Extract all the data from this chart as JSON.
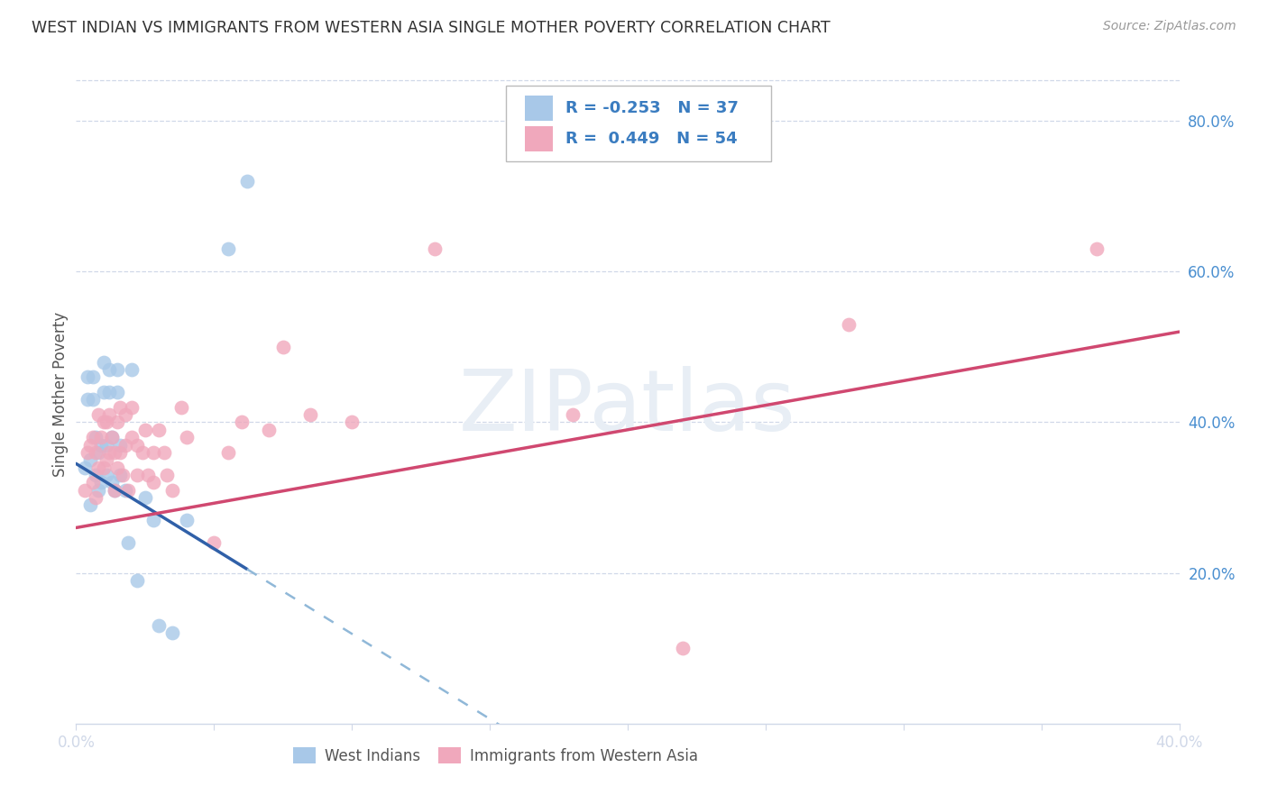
{
  "title": "WEST INDIAN VS IMMIGRANTS FROM WESTERN ASIA SINGLE MOTHER POVERTY CORRELATION CHART",
  "source": "Source: ZipAtlas.com",
  "ylabel": "Single Mother Poverty",
  "right_ytick_labels": [
    "80.0%",
    "60.0%",
    "40.0%",
    "20.0%"
  ],
  "right_ytick_vals": [
    0.8,
    0.6,
    0.4,
    0.2
  ],
  "xlim": [
    0.0,
    0.4
  ],
  "ylim": [
    0.0,
    0.875
  ],
  "legend_label1": "West Indians",
  "legend_label2": "Immigrants from Western Asia",
  "r1": -0.253,
  "n1": 37,
  "r2": 0.449,
  "n2": 54,
  "color_blue_scatter": "#a8c8e8",
  "color_pink_scatter": "#f0a8bc",
  "color_blue_line": "#3060a8",
  "color_pink_line": "#d04870",
  "color_blue_dash": "#90b8d8",
  "watermark_text": "ZIPatlas",
  "grid_color": "#d0d8e8",
  "wi_x": [
    0.003,
    0.004,
    0.004,
    0.005,
    0.005,
    0.006,
    0.006,
    0.007,
    0.007,
    0.008,
    0.008,
    0.009,
    0.009,
    0.01,
    0.01,
    0.011,
    0.011,
    0.012,
    0.012,
    0.013,
    0.013,
    0.014,
    0.015,
    0.015,
    0.016,
    0.016,
    0.018,
    0.019,
    0.02,
    0.022,
    0.025,
    0.028,
    0.03,
    0.035,
    0.04,
    0.055,
    0.062
  ],
  "wi_y": [
    0.34,
    0.46,
    0.43,
    0.35,
    0.29,
    0.46,
    0.43,
    0.38,
    0.33,
    0.36,
    0.31,
    0.37,
    0.32,
    0.48,
    0.44,
    0.37,
    0.33,
    0.47,
    0.44,
    0.38,
    0.32,
    0.31,
    0.47,
    0.44,
    0.37,
    0.33,
    0.31,
    0.24,
    0.47,
    0.19,
    0.3,
    0.27,
    0.13,
    0.12,
    0.27,
    0.63,
    0.72
  ],
  "wa_x": [
    0.003,
    0.004,
    0.005,
    0.006,
    0.006,
    0.007,
    0.007,
    0.008,
    0.008,
    0.009,
    0.01,
    0.01,
    0.011,
    0.011,
    0.012,
    0.012,
    0.013,
    0.014,
    0.014,
    0.015,
    0.015,
    0.016,
    0.016,
    0.017,
    0.018,
    0.018,
    0.019,
    0.02,
    0.02,
    0.022,
    0.022,
    0.024,
    0.025,
    0.026,
    0.028,
    0.028,
    0.03,
    0.032,
    0.033,
    0.035,
    0.038,
    0.04,
    0.05,
    0.055,
    0.06,
    0.07,
    0.075,
    0.085,
    0.1,
    0.13,
    0.18,
    0.22,
    0.28,
    0.37
  ],
  "wa_y": [
    0.31,
    0.36,
    0.37,
    0.38,
    0.32,
    0.36,
    0.3,
    0.41,
    0.34,
    0.38,
    0.4,
    0.34,
    0.4,
    0.35,
    0.41,
    0.36,
    0.38,
    0.36,
    0.31,
    0.4,
    0.34,
    0.42,
    0.36,
    0.33,
    0.41,
    0.37,
    0.31,
    0.42,
    0.38,
    0.37,
    0.33,
    0.36,
    0.39,
    0.33,
    0.36,
    0.32,
    0.39,
    0.36,
    0.33,
    0.31,
    0.42,
    0.38,
    0.24,
    0.36,
    0.4,
    0.39,
    0.5,
    0.41,
    0.4,
    0.63,
    0.41,
    0.1,
    0.53,
    0.63
  ],
  "line_blue_x0": 0.0,
  "line_blue_y0": 0.345,
  "line_blue_x1": 0.062,
  "line_blue_y1": 0.205,
  "line_blue_xend": 0.4,
  "line_blue_yend": -0.08,
  "line_pink_x0": 0.0,
  "line_pink_y0": 0.26,
  "line_pink_x1": 0.4,
  "line_pink_y1": 0.52
}
